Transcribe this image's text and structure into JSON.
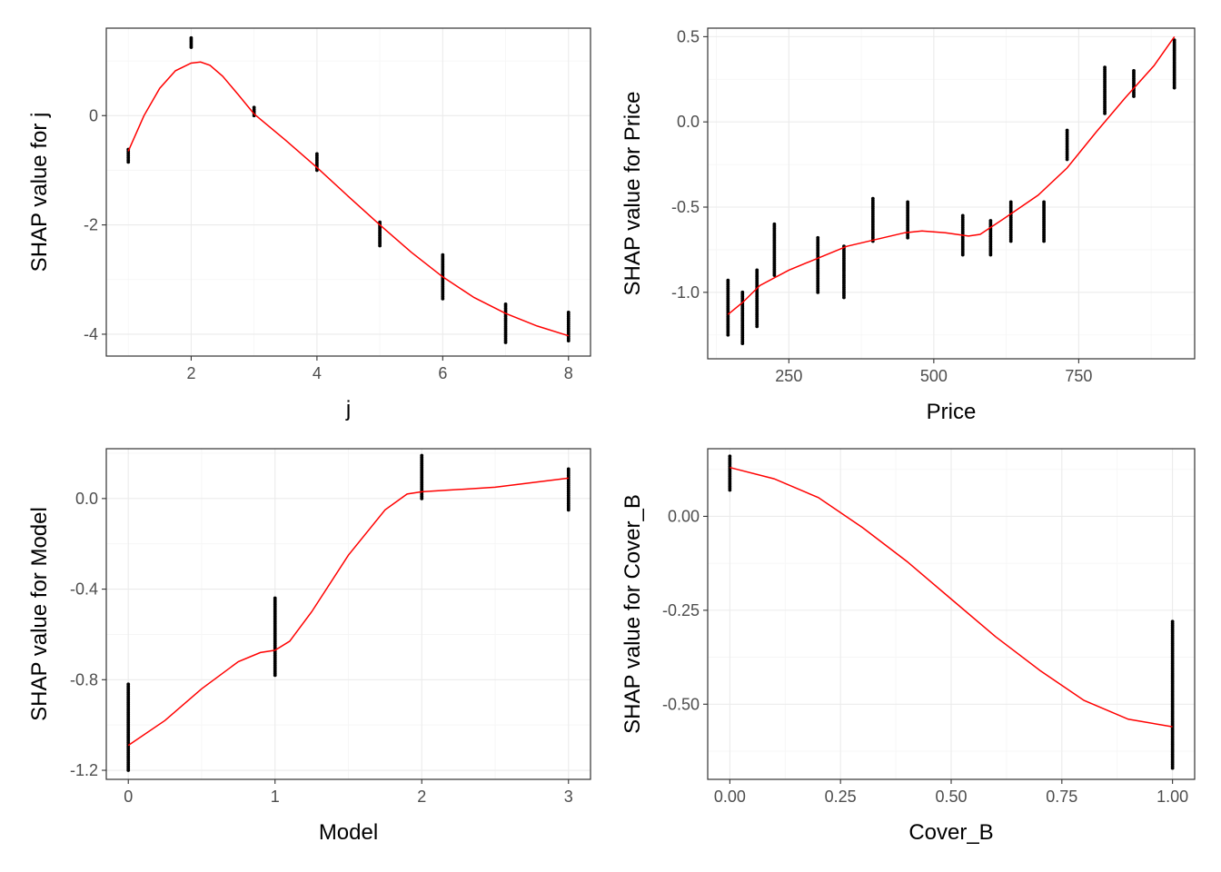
{
  "chart_data": [
    {
      "type": "scatter",
      "xlabel": "j",
      "ylabel": "SHAP value for j",
      "xlim": [
        0.65,
        8.35
      ],
      "ylim": [
        -4.4,
        1.6
      ],
      "x_ticks": [
        {
          "value": 2,
          "label": "2"
        },
        {
          "value": 4,
          "label": "4"
        },
        {
          "value": 6,
          "label": "6"
        },
        {
          "value": 8,
          "label": "8"
        }
      ],
      "y_ticks": [
        {
          "value": -4,
          "label": "-4"
        },
        {
          "value": -2,
          "label": "-2"
        },
        {
          "value": 0,
          "label": "0"
        }
      ],
      "grid": true,
      "point_color": "#000000",
      "points": [
        {
          "x": 1,
          "y_min": -0.85,
          "y_max": -0.62
        },
        {
          "x": 2,
          "y_min": 1.25,
          "y_max": 1.42
        },
        {
          "x": 3,
          "y_min": 0.0,
          "y_max": 0.15
        },
        {
          "x": 4,
          "y_min": -1.0,
          "y_max": -0.7
        },
        {
          "x": 5,
          "y_min": -2.38,
          "y_max": -1.95
        },
        {
          "x": 6,
          "y_min": -3.35,
          "y_max": -2.55
        },
        {
          "x": 7,
          "y_min": -4.15,
          "y_max": -3.45
        },
        {
          "x": 8,
          "y_min": -4.12,
          "y_max": -3.6
        }
      ],
      "smooth": {
        "color": "#ff0000",
        "x": [
          1,
          1.25,
          1.5,
          1.75,
          2,
          2.15,
          2.3,
          2.5,
          2.75,
          3,
          3.5,
          4,
          4.5,
          5,
          5.5,
          6,
          6.5,
          7,
          7.5,
          8
        ],
        "y": [
          -0.65,
          0.0,
          0.5,
          0.82,
          0.96,
          0.98,
          0.92,
          0.72,
          0.38,
          0.03,
          -0.45,
          -0.95,
          -1.48,
          -2.0,
          -2.5,
          -2.95,
          -3.33,
          -3.62,
          -3.85,
          -4.03
        ]
      }
    },
    {
      "type": "scatter",
      "xlabel": "Price",
      "ylabel": "SHAP value for Price",
      "xlim": [
        110,
        950
      ],
      "ylim": [
        -1.39,
        0.55
      ],
      "x_ticks": [
        {
          "value": 250,
          "label": "250"
        },
        {
          "value": 500,
          "label": "500"
        },
        {
          "value": 750,
          "label": "750"
        }
      ],
      "y_ticks": [
        {
          "value": -1.0,
          "label": "-1.0"
        },
        {
          "value": -0.5,
          "label": "-0.5"
        },
        {
          "value": 0.0,
          "label": "0.0"
        },
        {
          "value": 0.5,
          "label": "0.5"
        }
      ],
      "grid": true,
      "point_color": "#000000",
      "points": [
        {
          "x": 145,
          "y_min": -1.25,
          "y_max": -0.93
        },
        {
          "x": 170,
          "y_min": -1.3,
          "y_max": -1.0
        },
        {
          "x": 195,
          "y_min": -1.2,
          "y_max": -0.87
        },
        {
          "x": 225,
          "y_min": -0.9,
          "y_max": -0.6
        },
        {
          "x": 300,
          "y_min": -1.0,
          "y_max": -0.68
        },
        {
          "x": 345,
          "y_min": -1.03,
          "y_max": -0.73
        },
        {
          "x": 395,
          "y_min": -0.7,
          "y_max": -0.45
        },
        {
          "x": 455,
          "y_min": -0.68,
          "y_max": -0.47
        },
        {
          "x": 550,
          "y_min": -0.78,
          "y_max": -0.55
        },
        {
          "x": 598,
          "y_min": -0.78,
          "y_max": -0.58
        },
        {
          "x": 633,
          "y_min": -0.7,
          "y_max": -0.47
        },
        {
          "x": 690,
          "y_min": -0.7,
          "y_max": -0.47
        },
        {
          "x": 730,
          "y_min": -0.22,
          "y_max": -0.05
        },
        {
          "x": 795,
          "y_min": 0.05,
          "y_max": 0.32
        },
        {
          "x": 845,
          "y_min": 0.15,
          "y_max": 0.3
        },
        {
          "x": 915,
          "y_min": 0.2,
          "y_max": 0.48
        }
      ],
      "smooth": {
        "color": "#ff0000",
        "x": [
          145,
          170,
          200,
          250,
          300,
          350,
          400,
          450,
          480,
          520,
          560,
          580,
          620,
          680,
          730,
          780,
          830,
          880,
          915
        ],
        "y": [
          -1.13,
          -1.06,
          -0.96,
          -0.87,
          -0.8,
          -0.73,
          -0.69,
          -0.65,
          -0.64,
          -0.65,
          -0.67,
          -0.66,
          -0.57,
          -0.43,
          -0.27,
          -0.06,
          0.14,
          0.33,
          0.5
        ]
      }
    },
    {
      "type": "scatter",
      "xlabel": "Model",
      "ylabel": "SHAP value for Model",
      "xlim": [
        -0.15,
        3.15
      ],
      "ylim": [
        -1.24,
        0.22
      ],
      "x_ticks": [
        {
          "value": 0,
          "label": "0"
        },
        {
          "value": 1,
          "label": "1"
        },
        {
          "value": 2,
          "label": "2"
        },
        {
          "value": 3,
          "label": "3"
        }
      ],
      "y_ticks": [
        {
          "value": -1.2,
          "label": "-1.2"
        },
        {
          "value": -0.8,
          "label": "-0.8"
        },
        {
          "value": -0.4,
          "label": "-0.4"
        },
        {
          "value": 0.0,
          "label": "0.0"
        }
      ],
      "grid": true,
      "point_color": "#000000",
      "points": [
        {
          "x": 0,
          "y_min": -1.2,
          "y_max": -0.82
        },
        {
          "x": 1,
          "y_min": -0.78,
          "y_max": -0.44
        },
        {
          "x": 2,
          "y_min": 0.0,
          "y_max": 0.19
        },
        {
          "x": 3,
          "y_min": -0.05,
          "y_max": 0.13
        }
      ],
      "smooth": {
        "color": "#ff0000",
        "x": [
          0,
          0.25,
          0.5,
          0.75,
          0.9,
          1.0,
          1.1,
          1.25,
          1.5,
          1.75,
          1.9,
          2.0,
          2.25,
          2.5,
          2.75,
          3.0
        ],
        "y": [
          -1.09,
          -0.98,
          -0.84,
          -0.72,
          -0.68,
          -0.67,
          -0.63,
          -0.5,
          -0.25,
          -0.05,
          0.02,
          0.03,
          0.04,
          0.05,
          0.07,
          0.09
        ]
      }
    },
    {
      "type": "scatter",
      "xlabel": "Cover_B",
      "ylabel": "SHAP value for Cover_B",
      "xlim": [
        -0.05,
        1.05
      ],
      "ylim": [
        -0.7,
        0.18
      ],
      "x_ticks": [
        {
          "value": 0.0,
          "label": "0.00"
        },
        {
          "value": 0.25,
          "label": "0.25"
        },
        {
          "value": 0.5,
          "label": "0.50"
        },
        {
          "value": 0.75,
          "label": "0.75"
        },
        {
          "value": 1.0,
          "label": "1.00"
        }
      ],
      "y_ticks": [
        {
          "value": -0.5,
          "label": "-0.50"
        },
        {
          "value": -0.25,
          "label": "-0.25"
        },
        {
          "value": 0.0,
          "label": "0.00"
        }
      ],
      "grid": true,
      "point_color": "#000000",
      "points": [
        {
          "x": 0,
          "y_min": 0.07,
          "y_max": 0.16
        },
        {
          "x": 1,
          "y_min": -0.67,
          "y_max": -0.28
        }
      ],
      "smooth": {
        "color": "#ff0000",
        "x": [
          0,
          0.1,
          0.2,
          0.3,
          0.4,
          0.5,
          0.6,
          0.7,
          0.8,
          0.9,
          1.0
        ],
        "y": [
          0.13,
          0.1,
          0.05,
          -0.03,
          -0.12,
          -0.22,
          -0.32,
          -0.41,
          -0.49,
          -0.54,
          -0.56
        ]
      }
    }
  ]
}
